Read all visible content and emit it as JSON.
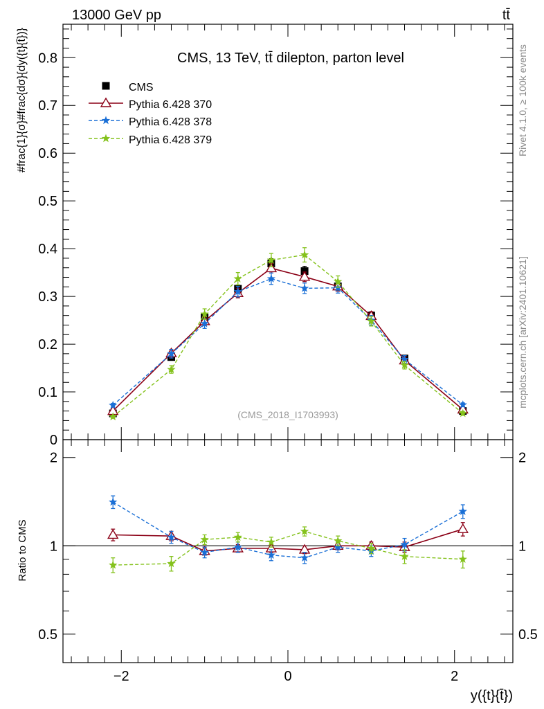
{
  "header": {
    "energy_label": "13000 GeV pp",
    "process_label": "tt̄"
  },
  "side_labels": {
    "rivet": "Rivet 4.1.0, ≥ 100k events",
    "mcplots": "mcplots.cern.ch [arXiv:2401.10621]"
  },
  "chart_data": [
    {
      "type": "scatter",
      "title": "CMS, 13 TeV, tt̄ dilepton, parton level",
      "watermark": "(CMS_2018_I1703993)",
      "xlabel": "y({t}{t̄})",
      "ylabel": "#frac{1}{σ}#frac{dσ}{dy({t}{t̄})}",
      "xlim": [
        -2.7,
        2.7
      ],
      "ylim": [
        0,
        0.87
      ],
      "yticks": [
        0,
        0.1,
        0.2,
        0.3,
        0.4,
        0.5,
        0.6,
        0.7,
        0.8
      ],
      "ytick_labels": [
        "0",
        "0.1",
        "0.2",
        "0.3",
        "0.4",
        "0.5",
        "0.6",
        "0.7",
        "0.8"
      ],
      "x": [
        -2.1,
        -1.4,
        -1.0,
        -0.6,
        -0.2,
        0.2,
        0.6,
        1.0,
        1.4,
        2.1
      ],
      "legend_position": "top-left",
      "series": [
        {
          "name": "CMS",
          "color": "#000000",
          "marker": "square",
          "line": "none",
          "values": [
            0.055,
            0.173,
            0.256,
            0.316,
            0.369,
            0.353,
            0.321,
            0.26,
            0.17,
            0.06
          ],
          "errors": [
            0.003,
            0.006,
            0.008,
            0.008,
            0.01,
            0.01,
            0.008,
            0.007,
            0.006,
            0.003
          ]
        },
        {
          "name": "Pythia 6.428 370",
          "color": "#8b0016",
          "marker": "open-triangle",
          "line": "solid",
          "values": [
            0.06,
            0.181,
            0.248,
            0.307,
            0.359,
            0.341,
            0.321,
            0.259,
            0.166,
            0.063
          ],
          "errors": [
            0.003,
            0.008,
            0.009,
            0.01,
            0.01,
            0.01,
            0.01,
            0.009,
            0.008,
            0.004
          ]
        },
        {
          "name": "Pythia 6.428 378",
          "color": "#1a6fd6",
          "marker": "star",
          "line": "dashed",
          "values": [
            0.072,
            0.18,
            0.243,
            0.31,
            0.337,
            0.317,
            0.318,
            0.25,
            0.168,
            0.073
          ],
          "errors": [
            0.004,
            0.009,
            0.01,
            0.011,
            0.012,
            0.011,
            0.011,
            0.01,
            0.008,
            0.004
          ]
        },
        {
          "name": "Pythia 6.428 379",
          "color": "#84c21c",
          "marker": "star",
          "line": "dashed",
          "values": [
            0.048,
            0.147,
            0.263,
            0.337,
            0.376,
            0.387,
            0.331,
            0.248,
            0.156,
            0.055
          ],
          "errors": [
            0.003,
            0.008,
            0.011,
            0.013,
            0.014,
            0.015,
            0.012,
            0.01,
            0.008,
            0.004
          ]
        }
      ]
    },
    {
      "type": "scatter",
      "title": "",
      "xlabel": "y({t}{t̄})",
      "ylabel": "Ratio to CMS",
      "xlim": [
        -2.7,
        2.7
      ],
      "ylim": [
        0.4,
        2.3
      ],
      "yscale": "log",
      "yticks": [
        0.5,
        1,
        2
      ],
      "ytick_labels": [
        "0.5",
        "1",
        "2"
      ],
      "xticks": [
        -2,
        0,
        2
      ],
      "xtick_labels": [
        "−2",
        "0",
        "2"
      ],
      "x": [
        -2.1,
        -1.4,
        -1.0,
        -0.6,
        -0.2,
        0.2,
        0.6,
        1.0,
        1.4,
        2.1
      ],
      "reference_line": 1,
      "series": [
        {
          "name": "Pythia 6.428 370",
          "color": "#8b0016",
          "marker": "open-triangle",
          "line": "solid",
          "values": [
            1.09,
            1.08,
            0.96,
            0.98,
            0.98,
            0.97,
            1.0,
            1.0,
            0.99,
            1.14
          ],
          "errors": [
            0.05,
            0.04,
            0.03,
            0.03,
            0.03,
            0.03,
            0.03,
            0.03,
            0.04,
            0.06
          ]
        },
        {
          "name": "Pythia 6.428 378",
          "color": "#1a6fd6",
          "marker": "star",
          "line": "dashed",
          "values": [
            1.41,
            1.07,
            0.95,
            0.99,
            0.93,
            0.91,
            0.99,
            0.96,
            1.01,
            1.31
          ],
          "errors": [
            0.07,
            0.05,
            0.04,
            0.04,
            0.04,
            0.04,
            0.04,
            0.04,
            0.05,
            0.07
          ]
        },
        {
          "name": "Pythia 6.428 379",
          "color": "#84c21c",
          "marker": "star",
          "line": "dashed",
          "values": [
            0.86,
            0.87,
            1.05,
            1.07,
            1.03,
            1.12,
            1.04,
            0.98,
            0.92,
            0.9
          ],
          "errors": [
            0.05,
            0.05,
            0.04,
            0.04,
            0.04,
            0.04,
            0.04,
            0.04,
            0.05,
            0.06
          ]
        }
      ]
    }
  ]
}
